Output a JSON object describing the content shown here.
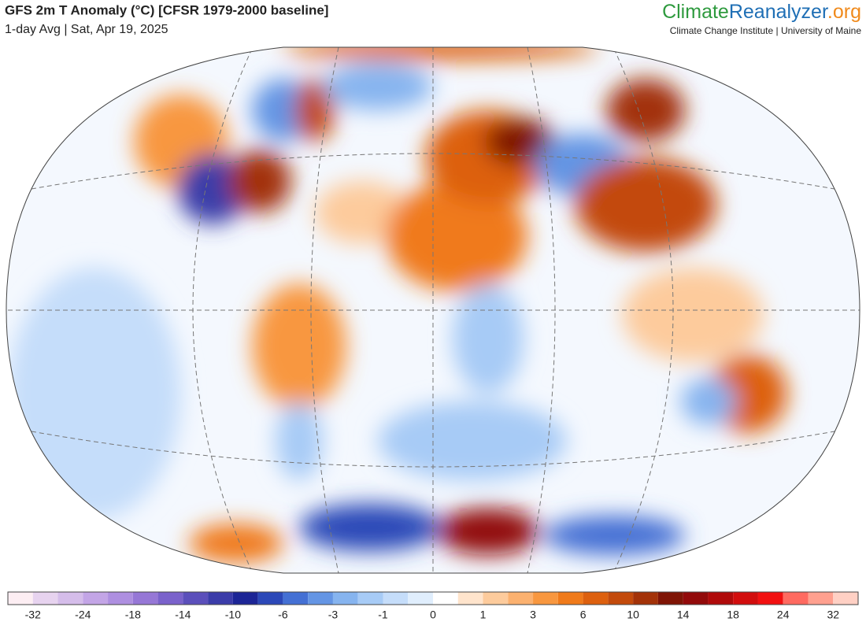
{
  "header": {
    "title": "GFS 2m T Anomaly (°C) [CFSR 1979-2000 baseline]",
    "subtitle": "1-day Avg | Sat, Apr 19, 2025"
  },
  "brand": {
    "parts": [
      "Climate",
      "Reanalyzer",
      ".org"
    ],
    "colors": [
      "#2e9a3e",
      "#1f6fb5",
      "#f08a1c"
    ],
    "institute": "Climate Change Institute | University of Maine"
  },
  "colorbar": {
    "colors": [
      "#fdeef3",
      "#e7d3ef",
      "#d5bdea",
      "#c3a5e6",
      "#ae8fe0",
      "#9677d6",
      "#7a62cb",
      "#5b4fbb",
      "#3b3ca9",
      "#1c2596",
      "#2b48b8",
      "#4470d4",
      "#6495e4",
      "#86b4ef",
      "#a7cbf6",
      "#c5ddfa",
      "#e0eefd",
      "#ffffff",
      "#ffe4cc",
      "#fdcb9c",
      "#fbb16f",
      "#f8973f",
      "#f07a1a",
      "#dd600e",
      "#c34a0b",
      "#a33208",
      "#7f1405",
      "#920a0a",
      "#b00a0a",
      "#d20d0d",
      "#f21010",
      "#ff6a60",
      "#ffa08f",
      "#ffd0c4"
    ],
    "ticks": [
      -32,
      -24,
      -18,
      -14,
      -10,
      -6,
      -3,
      -1,
      0,
      1,
      3,
      6,
      10,
      14,
      18,
      24,
      32
    ]
  }
}
